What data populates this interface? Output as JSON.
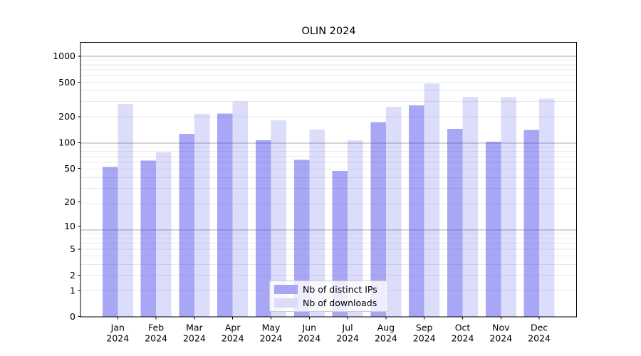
{
  "figure": {
    "title": "OLIN 2024",
    "background": "#ffffff"
  },
  "chart_data": {
    "type": "bar",
    "title": "OLIN 2024",
    "categories": [
      "Jan 2024",
      "Feb 2024",
      "Mar 2024",
      "Apr 2024",
      "May 2024",
      "Jun 2024",
      "Jul 2024",
      "Aug 2024",
      "Sep 2024",
      "Oct 2024",
      "Nov 2024",
      "Dec 2024"
    ],
    "x_month_labels": [
      "Jan",
      "Feb",
      "Mar",
      "Apr",
      "May",
      "Jun",
      "Jul",
      "Aug",
      "Sep",
      "Oct",
      "Nov",
      "Dec"
    ],
    "x_year_label": "2024",
    "series": [
      {
        "name": "Nb of distinct IPs",
        "color": "#a7a7f3",
        "base_color": "#3c3ceb",
        "alpha": 0.45,
        "values": [
          52,
          62,
          126,
          218,
          107,
          63,
          47,
          174,
          270,
          145,
          103,
          140
        ]
      },
      {
        "name": "Nb of downloads",
        "color": "#dcdcfa",
        "base_color": "#3c3ceb",
        "alpha": 0.18,
        "values": [
          282,
          77,
          216,
          299,
          181,
          142,
          107,
          261,
          481,
          340,
          337,
          325
        ]
      }
    ],
    "xlabel": "",
    "ylabel": "",
    "yscale": "log1p",
    "y_ticks": [
      0,
      1,
      2,
      5,
      10,
      20,
      50,
      100,
      200,
      500,
      1000
    ],
    "ylim": [
      0,
      1450
    ],
    "grid": "on",
    "grid_major_color": "#a8a8a8",
    "grid_minor_color": "#e9e9e9",
    "legend_position": "lower center",
    "spine_color": "#000000"
  }
}
